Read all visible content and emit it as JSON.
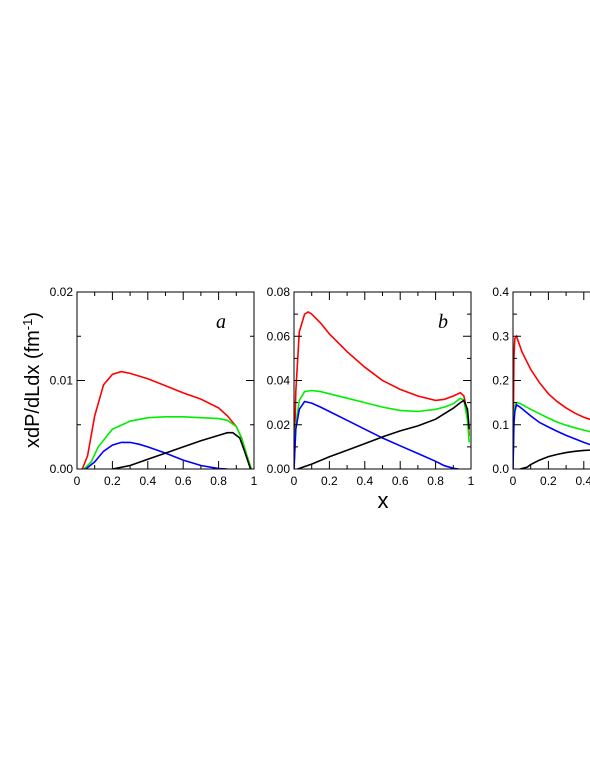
{
  "chart_data": [
    {
      "type": "line",
      "panel_label": "a",
      "xlabel": "",
      "ylabel": "xdP/dLdx (fm",
      "ylabel_superscript": "-1",
      "ylabel_suffix": ")",
      "xlim": [
        0,
        1
      ],
      "ylim": [
        0,
        0.02
      ],
      "xticks": [
        0,
        0.2,
        0.4,
        0.6,
        0.8,
        1
      ],
      "xtick_labels": [
        "0",
        "0.2",
        "0.4",
        "0.6",
        "0.8",
        "1"
      ],
      "yticks": [
        0,
        0.01,
        0.02
      ],
      "ytick_labels": [
        "0.00",
        "0.01",
        "0.02"
      ],
      "grid": false,
      "series": [
        {
          "color": "#ff0000",
          "x": [
            0.03,
            0.06,
            0.1,
            0.15,
            0.2,
            0.25,
            0.3,
            0.4,
            0.5,
            0.6,
            0.7,
            0.8,
            0.85,
            0.9,
            0.93,
            0.96,
            0.985
          ],
          "y": [
            0.0,
            0.0015,
            0.006,
            0.0095,
            0.0107,
            0.011,
            0.0108,
            0.0102,
            0.0094,
            0.0086,
            0.0079,
            0.0069,
            0.006,
            0.0048,
            0.0035,
            0.0015,
            0.0
          ]
        },
        {
          "color": "#00ee00",
          "x": [
            0.04,
            0.08,
            0.12,
            0.2,
            0.3,
            0.4,
            0.5,
            0.6,
            0.7,
            0.8,
            0.85,
            0.9,
            0.93,
            0.96,
            0.985
          ],
          "y": [
            0.0,
            0.0008,
            0.0025,
            0.0045,
            0.0054,
            0.0058,
            0.0059,
            0.0059,
            0.0058,
            0.0057,
            0.0055,
            0.0048,
            0.0035,
            0.0015,
            0.0
          ]
        },
        {
          "color": "#0000ff",
          "x": [
            0.05,
            0.1,
            0.15,
            0.2,
            0.25,
            0.3,
            0.35,
            0.4,
            0.5,
            0.6,
            0.7,
            0.8,
            0.85
          ],
          "y": [
            0.0,
            0.0008,
            0.002,
            0.0027,
            0.003,
            0.003,
            0.0028,
            0.0025,
            0.0018,
            0.001,
            0.0004,
            5e-05,
            0.0
          ]
        },
        {
          "color": "#000000",
          "x": [
            0.2,
            0.3,
            0.4,
            0.5,
            0.6,
            0.7,
            0.8,
            0.85,
            0.88,
            0.92,
            0.95,
            0.98
          ],
          "y": [
            0.0,
            0.0004,
            0.0011,
            0.0018,
            0.0025,
            0.0032,
            0.0038,
            0.0041,
            0.0041,
            0.0035,
            0.0018,
            0.0
          ]
        }
      ]
    },
    {
      "type": "line",
      "panel_label": "b",
      "xlabel": "x",
      "ylabel": "",
      "xlim": [
        0,
        1
      ],
      "ylim": [
        0,
        0.08
      ],
      "xticks": [
        0,
        0.2,
        0.4,
        0.6,
        0.8,
        1
      ],
      "xtick_labels": [
        "0",
        "0.2",
        "0.4",
        "0.6",
        "0.8",
        "1"
      ],
      "yticks": [
        0,
        0.02,
        0.04,
        0.06,
        0.08
      ],
      "ytick_labels": [
        "0.00",
        "0.02",
        "0.04",
        "0.06",
        "0.08"
      ],
      "grid": false,
      "series": [
        {
          "color": "#ff0000",
          "x": [
            0.0,
            0.01,
            0.03,
            0.06,
            0.08,
            0.1,
            0.15,
            0.2,
            0.3,
            0.4,
            0.5,
            0.6,
            0.7,
            0.8,
            0.85,
            0.9,
            0.94,
            0.96,
            0.98,
            0.99
          ],
          "y": [
            0.0,
            0.035,
            0.062,
            0.07,
            0.071,
            0.07,
            0.066,
            0.061,
            0.053,
            0.046,
            0.04,
            0.036,
            0.033,
            0.031,
            0.0315,
            0.033,
            0.0345,
            0.033,
            0.025,
            0.015
          ]
        },
        {
          "color": "#00ee00",
          "x": [
            0.0,
            0.01,
            0.03,
            0.06,
            0.1,
            0.15,
            0.2,
            0.3,
            0.4,
            0.5,
            0.6,
            0.7,
            0.8,
            0.85,
            0.9,
            0.94,
            0.96,
            0.98,
            0.99
          ],
          "y": [
            0.0,
            0.02,
            0.031,
            0.035,
            0.0355,
            0.035,
            0.034,
            0.032,
            0.03,
            0.028,
            0.0265,
            0.026,
            0.027,
            0.028,
            0.0295,
            0.032,
            0.031,
            0.022,
            0.012
          ]
        },
        {
          "color": "#0000ff",
          "x": [
            0.0,
            0.01,
            0.03,
            0.06,
            0.1,
            0.15,
            0.2,
            0.3,
            0.4,
            0.5,
            0.6,
            0.7,
            0.8,
            0.85,
            0.9,
            0.93
          ],
          "y": [
            0.0,
            0.018,
            0.027,
            0.0305,
            0.0298,
            0.028,
            0.026,
            0.022,
            0.018,
            0.014,
            0.0105,
            0.007,
            0.0035,
            0.0015,
            0.0003,
            0.0
          ]
        },
        {
          "color": "#000000",
          "x": [
            0.02,
            0.1,
            0.2,
            0.3,
            0.4,
            0.5,
            0.6,
            0.7,
            0.8,
            0.85,
            0.9,
            0.94,
            0.96,
            0.98,
            0.99
          ],
          "y": [
            0.0,
            0.0022,
            0.0055,
            0.0085,
            0.0115,
            0.0145,
            0.0172,
            0.0195,
            0.0225,
            0.025,
            0.0275,
            0.03,
            0.031,
            0.027,
            0.018
          ]
        }
      ]
    },
    {
      "type": "line",
      "panel_label": "",
      "xlabel": "",
      "ylabel": "",
      "xlim": [
        0,
        1
      ],
      "ylim": [
        0,
        0.4
      ],
      "xticks": [
        0,
        0.2,
        0.4
      ],
      "xtick_labels": [
        "0",
        "0.2",
        "0.4"
      ],
      "yticks": [
        0,
        0.1,
        0.2,
        0.3,
        0.4
      ],
      "ytick_labels": [
        "0.0",
        "0.1",
        "0.2",
        "0.3",
        "0.4"
      ],
      "grid": false,
      "series": [
        {
          "color": "#ff0000",
          "x": [
            0.0,
            0.005,
            0.01,
            0.02,
            0.05,
            0.1,
            0.15,
            0.2,
            0.25,
            0.3,
            0.35,
            0.4,
            0.45
          ],
          "y": [
            0.0,
            0.25,
            0.295,
            0.3,
            0.265,
            0.225,
            0.195,
            0.17,
            0.152,
            0.138,
            0.126,
            0.117,
            0.11
          ]
        },
        {
          "color": "#00ee00",
          "x": [
            0.0,
            0.005,
            0.01,
            0.02,
            0.04,
            0.1,
            0.15,
            0.2,
            0.25,
            0.3,
            0.35,
            0.4,
            0.45
          ],
          "y": [
            0.0,
            0.11,
            0.14,
            0.15,
            0.148,
            0.135,
            0.125,
            0.115,
            0.106,
            0.099,
            0.093,
            0.088,
            0.083
          ]
        },
        {
          "color": "#0000ff",
          "x": [
            0.0,
            0.005,
            0.01,
            0.02,
            0.04,
            0.1,
            0.15,
            0.2,
            0.25,
            0.3,
            0.35,
            0.4,
            0.45
          ],
          "y": [
            0.0,
            0.1,
            0.13,
            0.145,
            0.14,
            0.12,
            0.105,
            0.095,
            0.085,
            0.076,
            0.068,
            0.06,
            0.053
          ]
        },
        {
          "color": "#000000",
          "x": [
            0.04,
            0.08,
            0.1,
            0.15,
            0.2,
            0.25,
            0.3,
            0.35,
            0.4,
            0.45
          ],
          "y": [
            0.0,
            0.004,
            0.01,
            0.02,
            0.028,
            0.033,
            0.037,
            0.04,
            0.042,
            0.043
          ]
        }
      ]
    }
  ]
}
